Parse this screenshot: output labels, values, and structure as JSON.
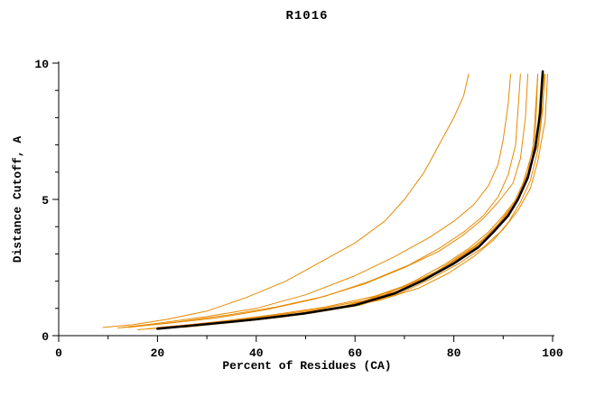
{
  "title": "R1016",
  "chart_data": {
    "type": "line",
    "title": "R1016",
    "xlabel": "Percent of Residues (CA)",
    "ylabel": "Distance Cutoff, A",
    "xlim": [
      0,
      100
    ],
    "ylim": [
      0,
      10
    ],
    "x_ticks": [
      0,
      20,
      40,
      60,
      80,
      100
    ],
    "x_minor_ticks": [
      10,
      30,
      50,
      70,
      90
    ],
    "y_ticks": [
      0,
      5,
      10
    ],
    "y_minor_ticks": [
      1,
      2,
      3,
      4,
      6,
      7,
      8,
      9
    ],
    "grid": false,
    "legend": "none",
    "colors": {
      "model_line": "#000000",
      "other_lines": "#e68a00"
    },
    "series": [
      {
        "name": "orange-outlier-left",
        "color": "#e68a00",
        "width": 1,
        "points": [
          [
            9,
            0.3
          ],
          [
            15,
            0.4
          ],
          [
            22,
            0.6
          ],
          [
            30,
            0.9
          ],
          [
            38,
            1.4
          ],
          [
            46,
            2.0
          ],
          [
            54,
            2.8
          ],
          [
            60,
            3.4
          ],
          [
            66,
            4.2
          ],
          [
            70,
            5.0
          ],
          [
            74,
            6.0
          ],
          [
            77,
            7.0
          ],
          [
            80,
            8.0
          ],
          [
            82,
            8.8
          ],
          [
            83,
            9.6
          ]
        ]
      },
      {
        "name": "orange-outlier-2",
        "color": "#e68a00",
        "width": 1,
        "points": [
          [
            13,
            0.3
          ],
          [
            20,
            0.45
          ],
          [
            30,
            0.7
          ],
          [
            40,
            1.0
          ],
          [
            50,
            1.5
          ],
          [
            60,
            2.2
          ],
          [
            68,
            2.9
          ],
          [
            75,
            3.6
          ],
          [
            80,
            4.2
          ],
          [
            84,
            4.8
          ],
          [
            87,
            5.5
          ],
          [
            89,
            6.3
          ],
          [
            90,
            7.2
          ],
          [
            91,
            8.5
          ],
          [
            91.5,
            9.6
          ]
        ]
      },
      {
        "name": "orange-left-of-bundle",
        "color": "#e68a00",
        "width": 1,
        "points": [
          [
            12,
            0.28
          ],
          [
            22,
            0.45
          ],
          [
            32,
            0.65
          ],
          [
            42,
            0.95
          ],
          [
            52,
            1.35
          ],
          [
            62,
            1.9
          ],
          [
            70,
            2.5
          ],
          [
            77,
            3.1
          ],
          [
            82,
            3.7
          ],
          [
            86,
            4.3
          ],
          [
            89,
            4.9
          ],
          [
            92,
            5.6
          ],
          [
            93.5,
            6.5
          ],
          [
            94.5,
            8.0
          ],
          [
            95,
            9.6
          ]
        ]
      },
      {
        "name": "orange-mid-outlier",
        "color": "#e68a00",
        "width": 1,
        "points": [
          [
            14,
            0.3
          ],
          [
            24,
            0.5
          ],
          [
            34,
            0.75
          ],
          [
            44,
            1.05
          ],
          [
            54,
            1.45
          ],
          [
            63,
            2.0
          ],
          [
            71,
            2.6
          ],
          [
            77,
            3.2
          ],
          [
            82,
            3.8
          ],
          [
            86,
            4.4
          ],
          [
            89,
            5.1
          ],
          [
            91,
            5.9
          ],
          [
            92.5,
            7.0
          ],
          [
            93,
            8.3
          ],
          [
            93.5,
            9.6
          ]
        ]
      },
      {
        "name": "orange-bundle-1",
        "color": "#e68a00",
        "width": 1,
        "points": [
          [
            18,
            0.25
          ],
          [
            28,
            0.4
          ],
          [
            38,
            0.58
          ],
          [
            48,
            0.8
          ],
          [
            58,
            1.1
          ],
          [
            66,
            1.5
          ],
          [
            72,
            2.0
          ],
          [
            78,
            2.6
          ],
          [
            83,
            3.2
          ],
          [
            87,
            3.8
          ],
          [
            90,
            4.4
          ],
          [
            93,
            5.1
          ],
          [
            95,
            6.0
          ],
          [
            96.5,
            7.4
          ],
          [
            97,
            9.6
          ]
        ]
      },
      {
        "name": "orange-bundle-2",
        "color": "#e68a00",
        "width": 1,
        "points": [
          [
            20,
            0.3
          ],
          [
            30,
            0.45
          ],
          [
            40,
            0.62
          ],
          [
            50,
            0.85
          ],
          [
            60,
            1.15
          ],
          [
            68,
            1.6
          ],
          [
            74,
            2.1
          ],
          [
            80,
            2.7
          ],
          [
            85,
            3.3
          ],
          [
            89,
            4.0
          ],
          [
            92,
            4.7
          ],
          [
            94,
            5.4
          ],
          [
            96,
            6.5
          ],
          [
            97.5,
            8.2
          ],
          [
            98,
            9.6
          ]
        ]
      },
      {
        "name": "orange-bundle-3",
        "color": "#e68a00",
        "width": 1,
        "points": [
          [
            22,
            0.32
          ],
          [
            32,
            0.5
          ],
          [
            42,
            0.7
          ],
          [
            52,
            0.95
          ],
          [
            62,
            1.3
          ],
          [
            70,
            1.8
          ],
          [
            76,
            2.3
          ],
          [
            81,
            2.9
          ],
          [
            86,
            3.5
          ],
          [
            90,
            4.2
          ],
          [
            93,
            5.0
          ],
          [
            95,
            5.9
          ],
          [
            97,
            7.0
          ],
          [
            98,
            8.5
          ],
          [
            98.5,
            9.6
          ]
        ]
      },
      {
        "name": "orange-bundle-4",
        "color": "#e68a00",
        "width": 1,
        "points": [
          [
            16,
            0.22
          ],
          [
            26,
            0.35
          ],
          [
            36,
            0.5
          ],
          [
            46,
            0.7
          ],
          [
            56,
            1.0
          ],
          [
            64,
            1.35
          ],
          [
            71,
            1.8
          ],
          [
            77,
            2.35
          ],
          [
            82,
            2.95
          ],
          [
            86,
            3.55
          ],
          [
            89,
            4.1
          ],
          [
            92,
            4.8
          ],
          [
            94,
            5.6
          ],
          [
            96,
            6.8
          ],
          [
            97,
            9.6
          ]
        ]
      },
      {
        "name": "orange-bundle-5",
        "color": "#e68a00",
        "width": 1,
        "points": [
          [
            24,
            0.35
          ],
          [
            34,
            0.55
          ],
          [
            44,
            0.78
          ],
          [
            54,
            1.05
          ],
          [
            64,
            1.45
          ],
          [
            72,
            1.95
          ],
          [
            78,
            2.5
          ],
          [
            83,
            3.1
          ],
          [
            87,
            3.7
          ],
          [
            90,
            4.3
          ],
          [
            93,
            5.0
          ],
          [
            95,
            5.8
          ],
          [
            96.5,
            6.9
          ],
          [
            97.5,
            8.4
          ],
          [
            98,
            9.6
          ]
        ]
      },
      {
        "name": "orange-bundle-6",
        "color": "#e68a00",
        "width": 1,
        "points": [
          [
            21,
            0.28
          ],
          [
            31,
            0.42
          ],
          [
            41,
            0.6
          ],
          [
            51,
            0.82
          ],
          [
            61,
            1.12
          ],
          [
            69,
            1.55
          ],
          [
            75,
            2.05
          ],
          [
            81,
            2.65
          ],
          [
            86,
            3.25
          ],
          [
            90,
            3.9
          ],
          [
            93,
            4.6
          ],
          [
            95.5,
            5.4
          ],
          [
            97,
            6.4
          ],
          [
            98.5,
            7.9
          ],
          [
            99,
            9.6
          ]
        ]
      },
      {
        "name": "orange-bundle-7",
        "color": "#e68a00",
        "width": 1,
        "points": [
          [
            19,
            0.26
          ],
          [
            29,
            0.4
          ],
          [
            39,
            0.57
          ],
          [
            49,
            0.78
          ],
          [
            59,
            1.08
          ],
          [
            67,
            1.5
          ],
          [
            73,
            2.0
          ],
          [
            79,
            2.6
          ],
          [
            84,
            3.2
          ],
          [
            88,
            3.85
          ],
          [
            91,
            4.5
          ],
          [
            93.5,
            5.2
          ],
          [
            95.5,
            6.2
          ],
          [
            97,
            7.6
          ],
          [
            97.8,
            9.6
          ]
        ]
      },
      {
        "name": "orange-bundle-8",
        "color": "#e68a00",
        "width": 1,
        "points": [
          [
            25,
            0.3
          ],
          [
            35,
            0.48
          ],
          [
            45,
            0.68
          ],
          [
            55,
            0.95
          ],
          [
            65,
            1.3
          ],
          [
            73,
            1.75
          ],
          [
            79,
            2.3
          ],
          [
            84,
            2.9
          ],
          [
            88,
            3.5
          ],
          [
            91,
            4.15
          ],
          [
            93.5,
            4.9
          ],
          [
            95.5,
            5.7
          ],
          [
            97,
            6.8
          ],
          [
            98,
            8.3
          ],
          [
            98.3,
            9.6
          ]
        ]
      },
      {
        "name": "black-model-line",
        "color": "#000000",
        "width": 2.5,
        "points": [
          [
            20,
            0.25
          ],
          [
            30,
            0.42
          ],
          [
            40,
            0.6
          ],
          [
            50,
            0.82
          ],
          [
            60,
            1.12
          ],
          [
            68,
            1.55
          ],
          [
            74,
            2.05
          ],
          [
            80,
            2.65
          ],
          [
            85,
            3.25
          ],
          [
            88,
            3.8
          ],
          [
            91,
            4.4
          ],
          [
            93,
            5.0
          ],
          [
            95,
            5.8
          ],
          [
            96.5,
            6.9
          ],
          [
            97.5,
            8.2
          ],
          [
            98,
            9.7
          ]
        ]
      }
    ]
  }
}
